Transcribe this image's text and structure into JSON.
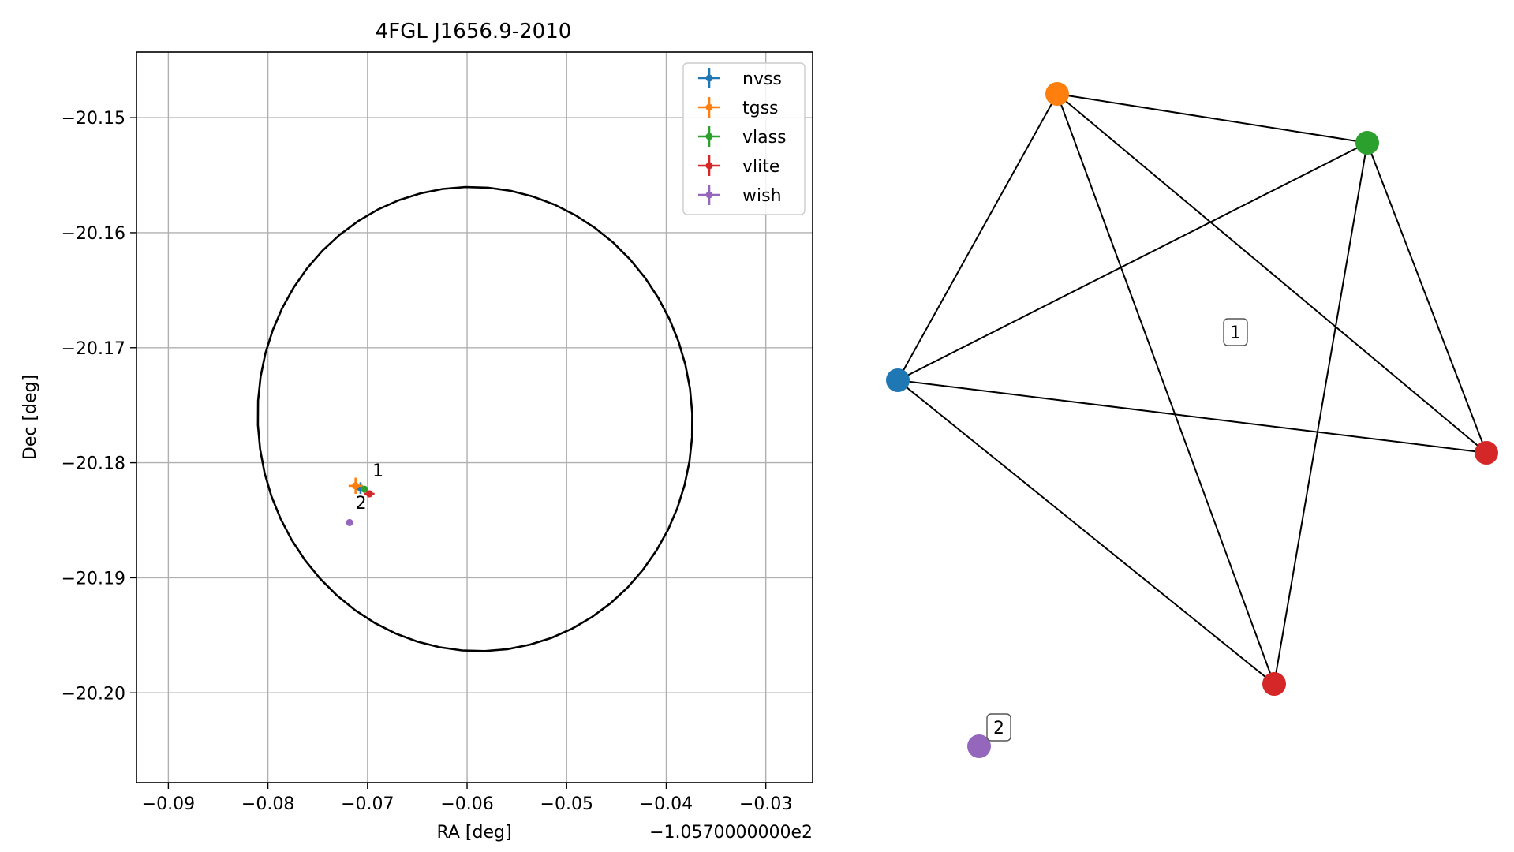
{
  "chart_data": [
    {
      "type": "scatter",
      "title": "4FGL J1656.9-2010",
      "xlabel": "RA [deg]",
      "ylabel": "Dec [deg]",
      "x_offset_label": "−1.0570000000e2",
      "xlim": [
        -0.0932,
        -0.0253
      ],
      "ylim": [
        -20.2078,
        -20.1443
      ],
      "xticks": [
        -0.09,
        -0.08,
        -0.07,
        -0.06,
        -0.05,
        -0.04,
        -0.03
      ],
      "xtick_labels": [
        "−0.09",
        "−0.08",
        "−0.07",
        "−0.06",
        "−0.05",
        "−0.04",
        "−0.03"
      ],
      "yticks": [
        -20.15,
        -20.16,
        -20.17,
        -20.18,
        -20.19,
        -20.2
      ],
      "ytick_labels": [
        "−20.15",
        "−20.16",
        "−20.17",
        "−20.18",
        "−20.19",
        "−20.20"
      ],
      "grid": true,
      "legend_position": "top-right",
      "series": [
        {
          "name": "nvss",
          "color": "#1f77b4",
          "x": -0.0707,
          "y": -20.1822,
          "xerr": 0.0004,
          "yerr": 0.0005
        },
        {
          "name": "tgss",
          "color": "#ff7f0e",
          "x": -0.0712,
          "y": -20.182,
          "xerr": 0.0007,
          "yerr": 0.0007
        },
        {
          "name": "vlass",
          "color": "#2ca02c",
          "x": -0.0703,
          "y": -20.1823,
          "xerr": 0.0002,
          "yerr": 0.0002
        },
        {
          "name": "vlite",
          "color": "#d62728",
          "x": -0.0698,
          "y": -20.1827,
          "xerr": 0.0005,
          "yerr": 0.0003
        },
        {
          "name": "wish",
          "color": "#9467bd",
          "x": -0.0718,
          "y": -20.1852,
          "xerr": 0.0001,
          "yerr": 0.0001
        }
      ],
      "ellipse": {
        "center_x": -0.0592,
        "center_y": -20.1762,
        "semi_x": 0.0218,
        "semi_y": 0.0202,
        "rotation_deg": -8,
        "color": "#000000"
      },
      "annotations": [
        {
          "text": "1",
          "x": -0.0695,
          "y": -20.1812
        },
        {
          "text": "2",
          "x": -0.0712,
          "y": -20.184
        }
      ]
    },
    {
      "type": "network",
      "nodes": [
        {
          "id": "nvss",
          "color": "#1f77b4"
        },
        {
          "id": "tgss",
          "color": "#ff7f0e"
        },
        {
          "id": "vlass",
          "color": "#2ca02c"
        },
        {
          "id": "vlite_a",
          "color": "#d62728"
        },
        {
          "id": "vlite_b",
          "color": "#d62728"
        },
        {
          "id": "wish",
          "color": "#9467bd"
        }
      ],
      "edges": [
        [
          "nvss",
          "tgss"
        ],
        [
          "nvss",
          "vlass"
        ],
        [
          "nvss",
          "vlite_a"
        ],
        [
          "nvss",
          "vlite_b"
        ],
        [
          "tgss",
          "vlass"
        ],
        [
          "tgss",
          "vlite_a"
        ],
        [
          "tgss",
          "vlite_b"
        ],
        [
          "vlass",
          "vlite_a"
        ],
        [
          "vlass",
          "vlite_b"
        ]
      ],
      "groups": [
        {
          "label": "1"
        },
        {
          "label": "2"
        }
      ]
    }
  ]
}
